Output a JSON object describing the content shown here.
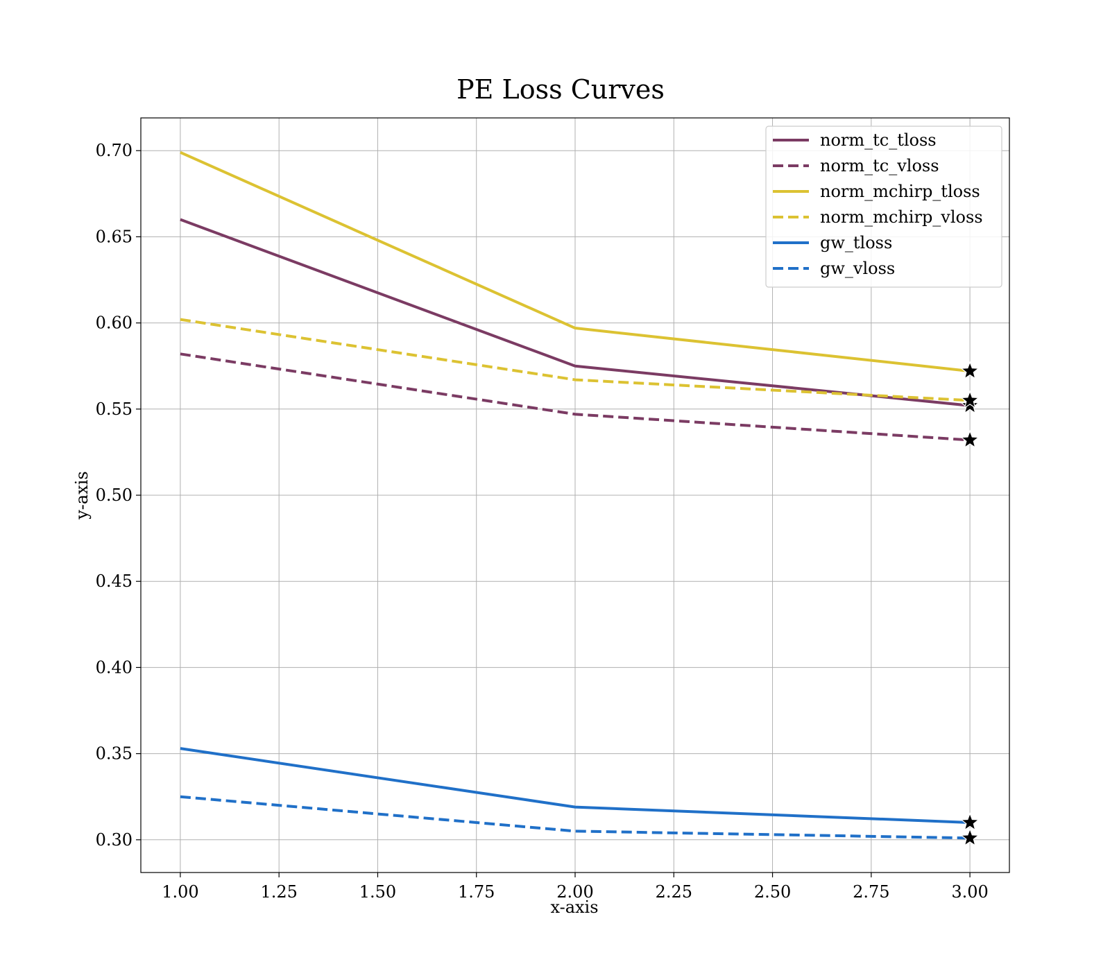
{
  "chart_data": {
    "type": "line",
    "title": "PE Loss Curves",
    "xlabel": "x-axis",
    "ylabel": "y-axis",
    "xlim": [
      0.9,
      3.1
    ],
    "ylim": [
      0.281,
      0.719
    ],
    "xticks": [
      1.0,
      1.25,
      1.5,
      1.75,
      2.0,
      2.25,
      2.5,
      2.75,
      3.0
    ],
    "xtick_labels": [
      "1.00",
      "1.25",
      "1.50",
      "1.75",
      "2.00",
      "2.25",
      "2.50",
      "2.75",
      "3.00"
    ],
    "yticks": [
      0.3,
      0.35,
      0.4,
      0.45,
      0.5,
      0.55,
      0.6,
      0.65,
      0.7
    ],
    "ytick_labels": [
      "0.30",
      "0.35",
      "0.40",
      "0.45",
      "0.50",
      "0.55",
      "0.60",
      "0.65",
      "0.70"
    ],
    "grid": true,
    "legend_position": "top-right",
    "x": [
      1.0,
      2.0,
      3.0
    ],
    "series": [
      {
        "name": "norm_tc_tloss",
        "values": [
          0.66,
          0.575,
          0.552
        ],
        "color": "#7b3b63",
        "dashed": false
      },
      {
        "name": "norm_tc_vloss",
        "values": [
          0.582,
          0.547,
          0.532
        ],
        "color": "#7b3b63",
        "dashed": true
      },
      {
        "name": "norm_mchirp_tloss",
        "values": [
          0.699,
          0.597,
          0.572
        ],
        "color": "#dcc232",
        "dashed": false
      },
      {
        "name": "norm_mchirp_vloss",
        "values": [
          0.602,
          0.567,
          0.555
        ],
        "color": "#dcc232",
        "dashed": true
      },
      {
        "name": "gw_tloss",
        "values": [
          0.353,
          0.319,
          0.31
        ],
        "color": "#2070c8",
        "dashed": false
      },
      {
        "name": "gw_vloss",
        "values": [
          0.325,
          0.305,
          0.301
        ],
        "color": "#2070c8",
        "dashed": true
      }
    ],
    "end_marker": "star"
  }
}
